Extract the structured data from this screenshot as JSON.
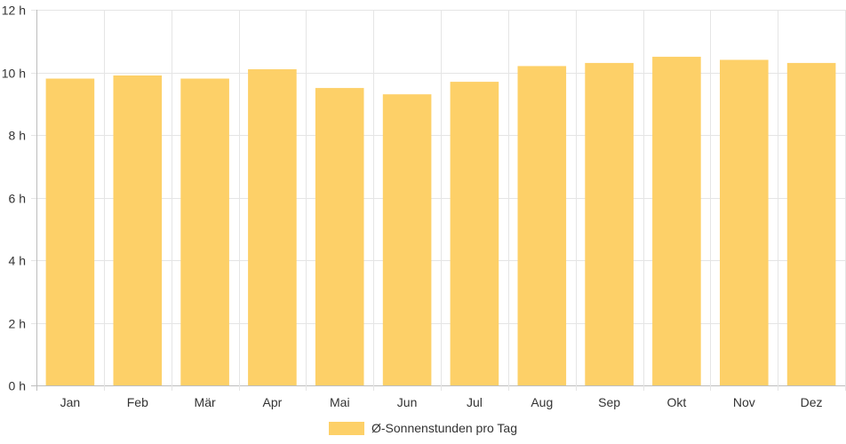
{
  "chart_data": {
    "type": "bar",
    "categories": [
      "Jan",
      "Feb",
      "Mär",
      "Apr",
      "Mai",
      "Jun",
      "Jul",
      "Aug",
      "Sep",
      "Okt",
      "Nov",
      "Dez"
    ],
    "series": [
      {
        "name": "Ø-Sonnenstunden pro Tag",
        "values": [
          9.8,
          9.9,
          9.8,
          10.1,
          9.5,
          9.3,
          9.7,
          10.2,
          10.3,
          10.5,
          10.4,
          10.3
        ],
        "color": "#fdd068"
      }
    ],
    "y_ticks": [
      "0 h",
      "2 h",
      "4 h",
      "6 h",
      "8 h",
      "10 h",
      "12 h"
    ],
    "ylim": [
      0,
      12
    ],
    "grid": true,
    "legend": "bottom-center"
  }
}
